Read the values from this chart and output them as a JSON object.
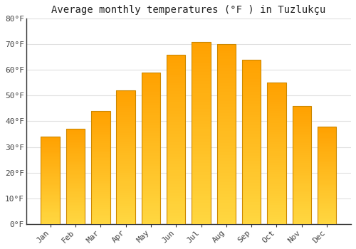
{
  "title": "Average monthly temperatures (°F ) in Tuzlukçu",
  "months": [
    "Jan",
    "Feb",
    "Mar",
    "Apr",
    "May",
    "Jun",
    "Jul",
    "Aug",
    "Sep",
    "Oct",
    "Nov",
    "Dec"
  ],
  "values": [
    34,
    37,
    44,
    52,
    59,
    66,
    71,
    70,
    64,
    55,
    46,
    38
  ],
  "ylim": [
    0,
    80
  ],
  "yticks": [
    0,
    10,
    20,
    30,
    40,
    50,
    60,
    70,
    80
  ],
  "background_color": "#ffffff",
  "grid_color": "#e0e0e0",
  "title_fontsize": 10,
  "tick_fontsize": 8,
  "bar_color_bottom": "#FFD740",
  "bar_color_top": "#FFA000",
  "bar_edge_color": "#CC8800",
  "bar_width": 0.75,
  "n_grad": 60
}
